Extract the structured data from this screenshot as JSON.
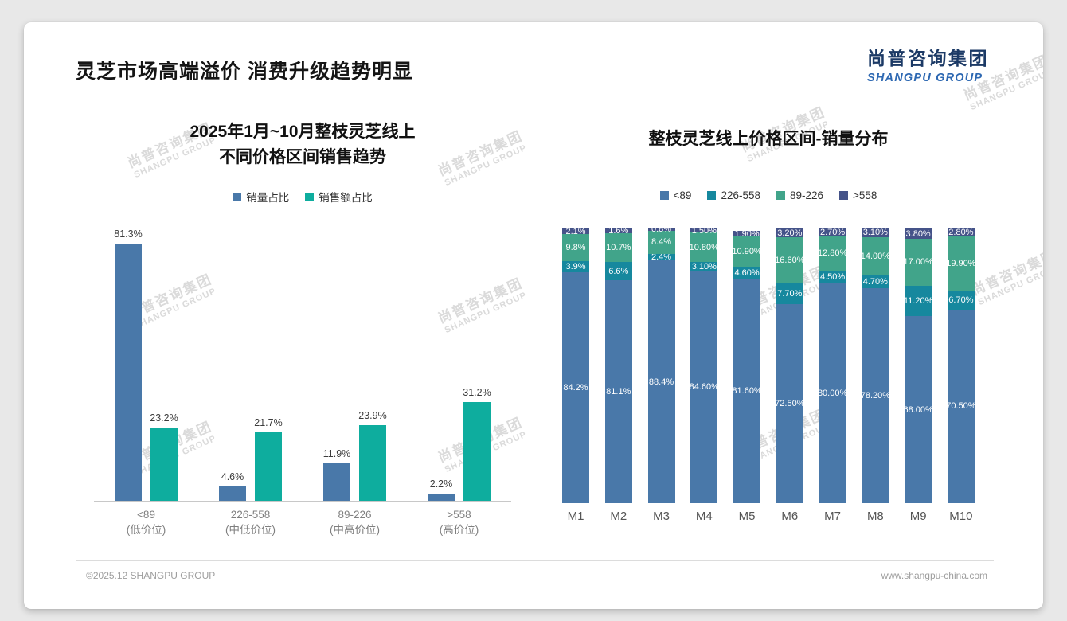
{
  "page": {
    "title": "灵芝市场高端溢价 消费升级趋势明显",
    "logo": {
      "cn": "尚普咨询集团",
      "en": "SHANGPU GROUP"
    },
    "watermark": {
      "cn": "尚普咨询集团",
      "en": "SHANGPU GROUP"
    },
    "footer": {
      "left": "©2025.12 SHANGPU GROUP",
      "right": "www.shangpu-china.com"
    }
  },
  "colors": {
    "bar_blue": "#4978a9",
    "bar_teal": "#0ead9e",
    "seg_dark_teal": "#16889e",
    "seg_green": "#41a48a",
    "seg_navy": "#455389"
  },
  "chart_data": [
    {
      "type": "bar",
      "title": "2025年1月~10月整枝灵芝线上 不同价格区间销售趋势",
      "title_lines": [
        "2025年1月~10月整枝灵芝线上",
        "不同价格区间销售趋势"
      ],
      "categories": [
        "<89",
        "226-558",
        "89-226",
        ">558"
      ],
      "category_sub": [
        "(低价位)",
        "(中低价位)",
        "(中高价位)",
        "(高价位)"
      ],
      "series": [
        {
          "name": "销量占比",
          "color": "#4978a9",
          "values": [
            81.3,
            4.6,
            11.9,
            2.2
          ],
          "labels": [
            "81.3%",
            "4.6%",
            "11.9%",
            "2.2%"
          ]
        },
        {
          "name": "销售额占比",
          "color": "#0ead9e",
          "values": [
            23.2,
            21.7,
            23.9,
            31.2
          ],
          "labels": [
            "23.2%",
            "21.7%",
            "23.9%",
            "31.2%"
          ]
        }
      ],
      "xlabel": "",
      "ylabel": "",
      "ylim": [
        0,
        85
      ],
      "grid": false,
      "legend_position": "top"
    },
    {
      "type": "bar",
      "stacked": true,
      "title": "整枝灵芝线上价格区间-销量分布",
      "categories": [
        "M1",
        "M2",
        "M3",
        "M4",
        "M5",
        "M6",
        "M7",
        "M8",
        "M9",
        "M10"
      ],
      "series": [
        {
          "name": "<89",
          "color": "#4978a9",
          "values": [
            84.2,
            81.1,
            88.4,
            84.6,
            81.6,
            72.5,
            80.0,
            78.2,
            68.0,
            70.5
          ],
          "labels": [
            "84.2%",
            "81.1%",
            "88.4%",
            "84.60%",
            "81.60%",
            "72.50%",
            "80.00%",
            "78.20%",
            "68.00%",
            "70.50%"
          ]
        },
        {
          "name": "226-558",
          "color": "#16889e",
          "values": [
            3.9,
            6.6,
            2.4,
            3.1,
            4.6,
            7.7,
            4.5,
            4.7,
            11.2,
            6.7
          ],
          "labels": [
            "3.9%",
            "6.6%",
            "2.4%",
            "3.10%",
            "4.60%",
            "7.70%",
            "4.50%",
            "4.70%",
            "11.20%",
            "6.70%"
          ]
        },
        {
          "name": "89-226",
          "color": "#41a48a",
          "values": [
            9.8,
            10.7,
            8.4,
            10.8,
            10.9,
            16.6,
            12.8,
            14.0,
            17.0,
            19.9
          ],
          "labels": [
            "9.8%",
            "10.7%",
            "8.4%",
            "10.80%",
            "10.90%",
            "16.60%",
            "12.80%",
            "14.00%",
            "17.00%",
            "19.90%"
          ]
        },
        {
          "name": ">558",
          "color": "#455389",
          "values": [
            2.1,
            1.6,
            0.8,
            1.5,
            1.9,
            3.2,
            2.7,
            3.1,
            3.8,
            2.8
          ],
          "labels": [
            "2.1%",
            "1.6%",
            "0.8%",
            "1.50%",
            "1.90%",
            "3.20%",
            "2.70%",
            "3.10%",
            "3.80%",
            "2.80%"
          ]
        }
      ],
      "xlabel": "",
      "ylabel": "",
      "ylim": [
        0,
        100
      ],
      "grid": false,
      "legend_position": "top"
    }
  ]
}
